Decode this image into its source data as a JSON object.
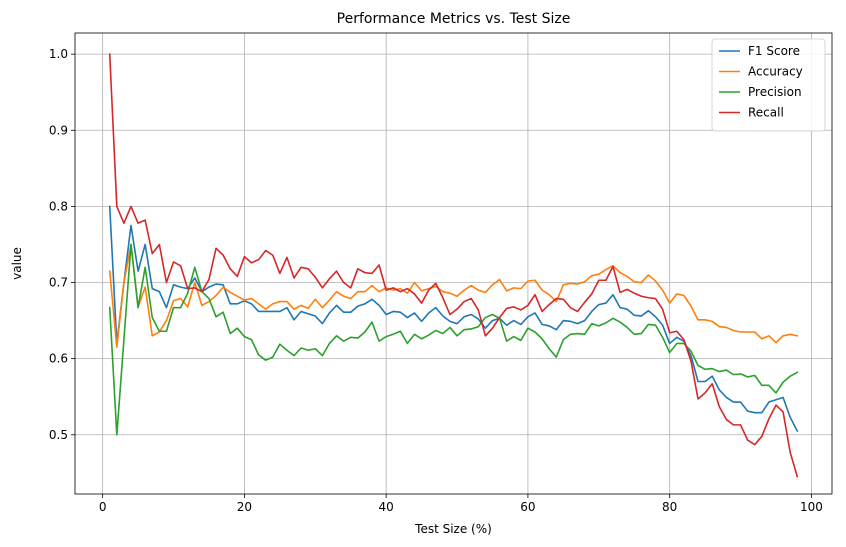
{
  "chart_data": {
    "type": "line",
    "title": "Performance Metrics vs. Test Size",
    "xlabel": "Test Size (%)",
    "ylabel": "value",
    "xlim": [
      -3.9,
      102.9
    ],
    "ylim": [
      0.4222,
      1.0278
    ],
    "xticks": [
      0,
      20,
      40,
      60,
      80,
      100
    ],
    "yticks": [
      0.5,
      0.6,
      0.7,
      0.8,
      0.9,
      1.0
    ],
    "xtick_labels": [
      "0",
      "20",
      "40",
      "60",
      "80",
      "100"
    ],
    "ytick_labels": [
      "0.5",
      "0.6",
      "0.7",
      "0.8",
      "0.9",
      "1.0"
    ],
    "grid": true,
    "legend_position": "top-right",
    "x": [
      1,
      2,
      3,
      4,
      5,
      6,
      7,
      8,
      9,
      10,
      11,
      12,
      13,
      14,
      15,
      16,
      17,
      18,
      19,
      20,
      21,
      22,
      23,
      24,
      25,
      26,
      27,
      28,
      29,
      30,
      31,
      32,
      33,
      34,
      35,
      36,
      37,
      38,
      39,
      40,
      41,
      42,
      43,
      44,
      45,
      46,
      47,
      48,
      49,
      50,
      51,
      52,
      53,
      54,
      55,
      56,
      57,
      58,
      59,
      60,
      61,
      62,
      63,
      64,
      65,
      66,
      67,
      68,
      69,
      70,
      71,
      72,
      73,
      74,
      75,
      76,
      77,
      78,
      79,
      80,
      81,
      82,
      83,
      84,
      85,
      86,
      87,
      88,
      89,
      90,
      91,
      92,
      93,
      94,
      95,
      96,
      97,
      98
    ],
    "series": [
      {
        "name": "F1 Score",
        "color": "#1f77b4",
        "values": [
          0.8,
          0.62,
          0.7,
          0.775,
          0.715,
          0.75,
          0.692,
          0.688,
          0.667,
          0.697,
          0.694,
          0.692,
          0.706,
          0.688,
          0.694,
          0.698,
          0.697,
          0.672,
          0.672,
          0.676,
          0.672,
          0.662,
          0.662,
          0.662,
          0.662,
          0.667,
          0.651,
          0.662,
          0.659,
          0.656,
          0.646,
          0.66,
          0.67,
          0.661,
          0.661,
          0.669,
          0.672,
          0.678,
          0.67,
          0.658,
          0.662,
          0.661,
          0.654,
          0.66,
          0.649,
          0.66,
          0.667,
          0.656,
          0.649,
          0.646,
          0.655,
          0.658,
          0.652,
          0.64,
          0.65,
          0.653,
          0.644,
          0.65,
          0.645,
          0.655,
          0.66,
          0.645,
          0.643,
          0.638,
          0.65,
          0.649,
          0.646,
          0.65,
          0.662,
          0.671,
          0.673,
          0.684,
          0.667,
          0.665,
          0.657,
          0.656,
          0.663,
          0.655,
          0.644,
          0.62,
          0.628,
          0.623,
          0.604,
          0.57,
          0.57,
          0.577,
          0.559,
          0.549,
          0.543,
          0.543,
          0.531,
          0.529,
          0.529,
          0.543,
          0.546,
          0.549,
          0.523,
          0.505
        ]
      },
      {
        "name": "Accuracy",
        "color": "#ff7f0e",
        "values": [
          0.715,
          0.615,
          0.7,
          0.75,
          0.668,
          0.694,
          0.63,
          0.635,
          0.65,
          0.676,
          0.679,
          0.668,
          0.7,
          0.67,
          0.675,
          0.683,
          0.694,
          0.687,
          0.682,
          0.677,
          0.679,
          0.672,
          0.665,
          0.672,
          0.675,
          0.675,
          0.665,
          0.67,
          0.666,
          0.678,
          0.667,
          0.677,
          0.688,
          0.682,
          0.679,
          0.688,
          0.688,
          0.696,
          0.688,
          0.693,
          0.69,
          0.692,
          0.686,
          0.7,
          0.689,
          0.692,
          0.695,
          0.688,
          0.686,
          0.682,
          0.69,
          0.696,
          0.69,
          0.687,
          0.697,
          0.704,
          0.689,
          0.693,
          0.692,
          0.702,
          0.703,
          0.69,
          0.684,
          0.675,
          0.697,
          0.699,
          0.698,
          0.701,
          0.709,
          0.711,
          0.717,
          0.722,
          0.713,
          0.708,
          0.701,
          0.7,
          0.71,
          0.702,
          0.69,
          0.673,
          0.685,
          0.683,
          0.669,
          0.651,
          0.651,
          0.649,
          0.642,
          0.641,
          0.637,
          0.635,
          0.635,
          0.635,
          0.626,
          0.63,
          0.621,
          0.63,
          0.632,
          0.63
        ]
      },
      {
        "name": "Precision",
        "color": "#2ca02c",
        "values": [
          0.667,
          0.5,
          0.625,
          0.75,
          0.667,
          0.72,
          0.654,
          0.636,
          0.636,
          0.667,
          0.667,
          0.686,
          0.72,
          0.688,
          0.679,
          0.655,
          0.661,
          0.633,
          0.64,
          0.629,
          0.625,
          0.605,
          0.598,
          0.602,
          0.619,
          0.611,
          0.604,
          0.614,
          0.611,
          0.613,
          0.604,
          0.62,
          0.63,
          0.623,
          0.628,
          0.627,
          0.635,
          0.648,
          0.623,
          0.629,
          0.632,
          0.636,
          0.62,
          0.632,
          0.626,
          0.631,
          0.637,
          0.633,
          0.641,
          0.63,
          0.638,
          0.639,
          0.642,
          0.654,
          0.658,
          0.653,
          0.623,
          0.629,
          0.624,
          0.64,
          0.635,
          0.626,
          0.613,
          0.602,
          0.625,
          0.632,
          0.633,
          0.632,
          0.646,
          0.643,
          0.647,
          0.653,
          0.648,
          0.641,
          0.632,
          0.633,
          0.645,
          0.644,
          0.628,
          0.608,
          0.62,
          0.62,
          0.61,
          0.591,
          0.586,
          0.587,
          0.583,
          0.585,
          0.579,
          0.58,
          0.576,
          0.578,
          0.565,
          0.565,
          0.555,
          0.569,
          0.577,
          0.582
        ]
      },
      {
        "name": "Recall",
        "color": "#d62728",
        "values": [
          1.0,
          0.8,
          0.778,
          0.8,
          0.778,
          0.782,
          0.738,
          0.75,
          0.7,
          0.727,
          0.722,
          0.692,
          0.693,
          0.688,
          0.704,
          0.745,
          0.736,
          0.718,
          0.708,
          0.734,
          0.726,
          0.73,
          0.742,
          0.736,
          0.712,
          0.733,
          0.706,
          0.72,
          0.718,
          0.707,
          0.693,
          0.705,
          0.715,
          0.7,
          0.693,
          0.718,
          0.713,
          0.712,
          0.723,
          0.69,
          0.693,
          0.688,
          0.692,
          0.685,
          0.673,
          0.69,
          0.699,
          0.68,
          0.658,
          0.665,
          0.675,
          0.679,
          0.664,
          0.63,
          0.64,
          0.654,
          0.666,
          0.668,
          0.664,
          0.67,
          0.684,
          0.662,
          0.671,
          0.679,
          0.678,
          0.667,
          0.662,
          0.674,
          0.685,
          0.703,
          0.703,
          0.721,
          0.687,
          0.691,
          0.686,
          0.682,
          0.68,
          0.679,
          0.665,
          0.634,
          0.636,
          0.625,
          0.597,
          0.547,
          0.555,
          0.567,
          0.537,
          0.52,
          0.513,
          0.513,
          0.493,
          0.487,
          0.498,
          0.521,
          0.539,
          0.53,
          0.477,
          0.445
        ]
      }
    ]
  }
}
